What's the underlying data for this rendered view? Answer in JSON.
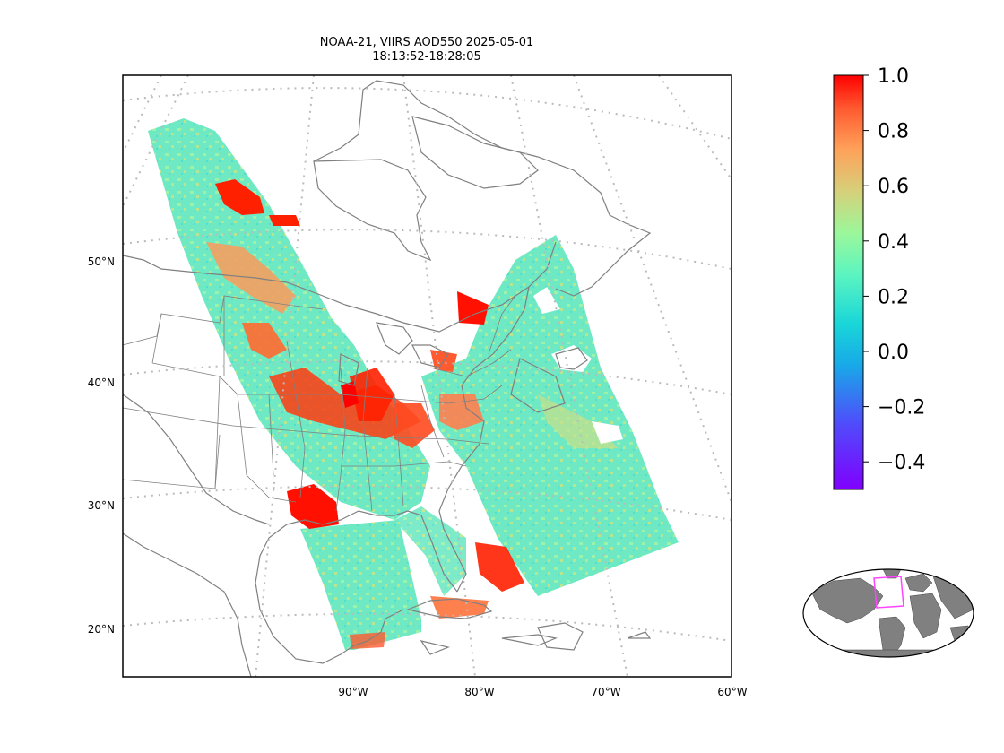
{
  "figure": {
    "title_line1": "NOAA-21, VIIRS AOD550 2025-05-01",
    "title_line2": "18:13:52-18:28:05"
  },
  "map": {
    "projection": "lambert-conformal",
    "lat_labels": [
      "50°N",
      "40°N",
      "30°N",
      "20°N"
    ],
    "lon_labels": [
      "90°W",
      "80°W",
      "70°W",
      "60°W"
    ],
    "gridlines": true,
    "coastline_color": "#808080",
    "gridline_color": "#bbbbbb"
  },
  "colorbar": {
    "colormap": "rainbow",
    "vmin": -0.5,
    "vmax": 1.0,
    "tick_labels": [
      "1.0",
      "0.8",
      "0.6",
      "0.4",
      "0.2",
      "0.0",
      "−0.2",
      "−0.4"
    ],
    "tick_values": [
      1.0,
      0.8,
      0.6,
      0.4,
      0.2,
      0.0,
      -0.2,
      -0.4
    ]
  },
  "inset": {
    "type": "world-locator",
    "land_color": "#808080",
    "highlight_color": "#ff44ff"
  }
}
